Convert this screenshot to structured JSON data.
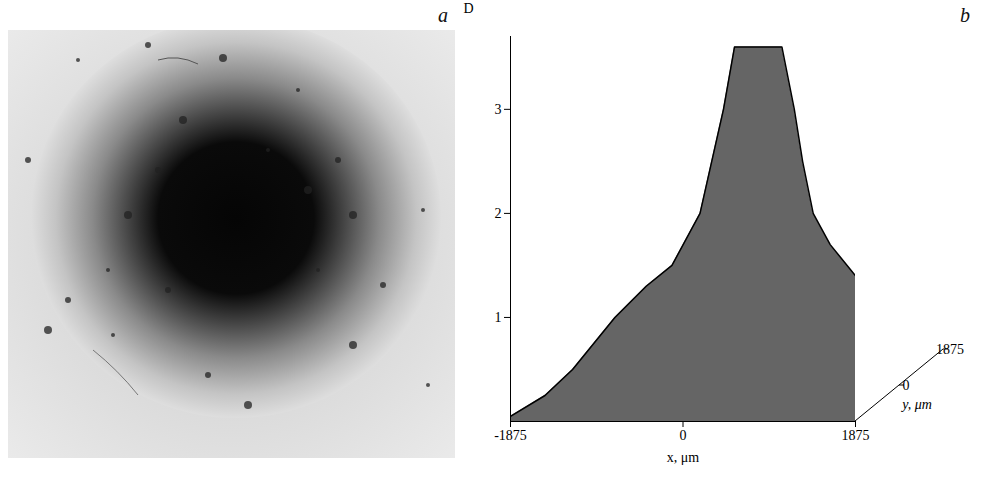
{
  "chart_data": {
    "type": "area",
    "panel_label": "b",
    "x": [
      -1875,
      -1500,
      -1200,
      -740,
      -400,
      -120,
      185,
      440,
      560,
      1075,
      1210,
      1300,
      1415,
      1600,
      1875
    ],
    "values": [
      0.05,
      0.25,
      0.5,
      1.0,
      1.3,
      1.5,
      2.0,
      3.0,
      3.6,
      3.6,
      3.0,
      2.5,
      2.0,
      1.7,
      1.4
    ],
    "color": "#4a4a4a",
    "x_label": "x, μm",
    "y_label": "D",
    "xlim": [
      -1875,
      1875
    ],
    "xticks": [
      -1875,
      0,
      1875
    ],
    "ylim": [
      0,
      3.7
    ],
    "yticks": [
      1,
      2,
      3
    ],
    "depth_label": "y, μm",
    "depth_lim": [
      -1875,
      1875
    ],
    "depth_ticks": [
      0,
      1875
    ],
    "grid": false
  },
  "image": {
    "panel_label": "a"
  }
}
